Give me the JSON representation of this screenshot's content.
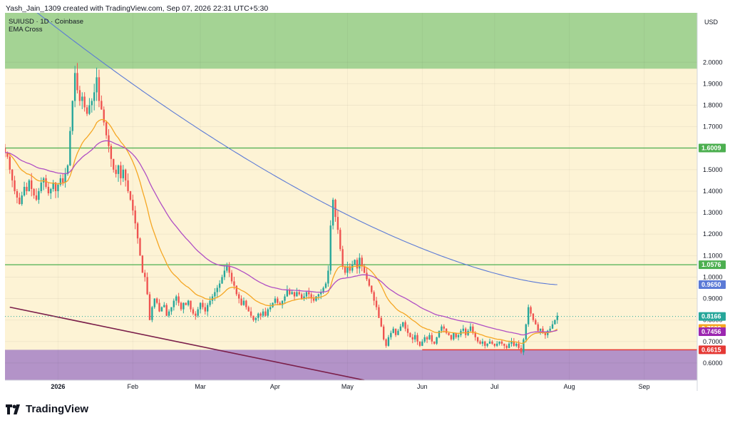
{
  "header": {
    "credit": "Yash_Jain_1309 created with TradingView.com, Sep 07, 2026 22:31 UTC+5:30"
  },
  "legend": {
    "symbol": "SUIUSD · 1D · Coinbase",
    "indicator": "EMA Cross"
  },
  "brand": {
    "name": "TradingView",
    "logo_icon": "tradingview-logo-icon"
  },
  "colors": {
    "background": "#fdf3d5",
    "upper_zone": "#a4d394",
    "lower_zone": "#b393c8",
    "candle_up": "#26a69a",
    "candle_down": "#ef5350",
    "ema_fast": "#f5a623",
    "ema_mid": "#b04fc4",
    "ema_slow": "#5b7ad6",
    "level_line": "#4caf50",
    "support_line": "#e53935",
    "trend_line": "#7b1f4a"
  },
  "chart_data": {
    "type": "candlestick",
    "title": "SUIUSD · 1D · Coinbase",
    "currency_label": "USD",
    "y_ticks": [
      "2.0000",
      "1.9000",
      "1.8000",
      "1.7000",
      "1.6000",
      "1.5000",
      "1.4000",
      "1.3000",
      "1.2000",
      "1.1000",
      "1.0000",
      "0.9000",
      "0.8000",
      "0.7000",
      "0.6000"
    ],
    "x_ticks": [
      {
        "label": "2026",
        "date": "2026-01-01",
        "bold": true
      },
      {
        "label": "Feb",
        "date": "2026-02-01",
        "bold": false
      },
      {
        "label": "Mar",
        "date": "2026-03-01",
        "bold": false
      },
      {
        "label": "Apr",
        "date": "2026-04-01",
        "bold": false
      },
      {
        "label": "May",
        "date": "2026-05-01",
        "bold": false
      },
      {
        "label": "Jun",
        "date": "2026-06-01",
        "bold": false
      },
      {
        "label": "Jul",
        "date": "2026-07-01",
        "bold": false
      },
      {
        "label": "Aug",
        "date": "2026-08-01",
        "bold": false
      },
      {
        "label": "Sep",
        "date": "2026-09-01",
        "bold": false
      }
    ],
    "ylim": [
      0.52,
      2.23
    ],
    "xlim": [
      "2025-12-10",
      "2026-09-23"
    ],
    "zones": [
      {
        "from": 1.97,
        "to": 2.23,
        "color": "#a4d394"
      },
      {
        "from": 0.52,
        "to": 0.6615,
        "color": "#b393c8"
      }
    ],
    "horizontal_levels": [
      {
        "value": 1.6009,
        "label": "1.6009"
      },
      {
        "value": 1.0576,
        "label": "1.0576"
      },
      {
        "value": 0.6615,
        "label": "0.6615"
      }
    ],
    "price_badges": [
      {
        "value": 0.965,
        "label": "0.9650",
        "color": "#5b7ad6"
      },
      {
        "value": 0.8166,
        "label": "0.8166",
        "color": "#26a69a"
      },
      {
        "value": 0.7609,
        "label": "0.7609",
        "color": "#f5a623"
      },
      {
        "value": 0.7456,
        "label": "0.7456",
        "color": "#9c27b0"
      },
      {
        "value": 0.6615,
        "label": "0.6615",
        "color": "#e53935"
      }
    ],
    "trend_line": {
      "start": {
        "date": "2025-12-12",
        "value": 0.86
      },
      "end": {
        "date": "2026-05-08",
        "value": 0.52
      }
    },
    "support_segment": {
      "start": "2026-06-01",
      "end": "2026-09-23",
      "value": 0.6615
    },
    "current_price_date": "2026-09-07",
    "candle_start_date": "2025-12-10",
    "closes": [
      1.58,
      1.56,
      1.5,
      1.45,
      1.4,
      1.37,
      1.34,
      1.38,
      1.42,
      1.4,
      1.45,
      1.41,
      1.38,
      1.36,
      1.4,
      1.44,
      1.46,
      1.42,
      1.39,
      1.41,
      1.44,
      1.4,
      1.43,
      1.46,
      1.44,
      1.48,
      1.52,
      1.68,
      1.82,
      1.95,
      1.87,
      1.82,
      1.84,
      1.79,
      1.76,
      1.8,
      1.82,
      1.86,
      1.93,
      1.82,
      1.78,
      1.72,
      1.66,
      1.61,
      1.55,
      1.5,
      1.48,
      1.52,
      1.46,
      1.5,
      1.45,
      1.4,
      1.36,
      1.31,
      1.25,
      1.18,
      1.1,
      1.02,
      1.0,
      0.92,
      0.8,
      0.86,
      0.9,
      0.88,
      0.84,
      0.86,
      0.87,
      0.82,
      0.84,
      0.86,
      0.89,
      0.91,
      0.88,
      0.85,
      0.88,
      0.87,
      0.89,
      0.85,
      0.83,
      0.82,
      0.85,
      0.88,
      0.86,
      0.84,
      0.87,
      0.89,
      0.91,
      0.93,
      0.95,
      0.97,
      1.0,
      1.03,
      1.05,
      1.02,
      0.98,
      0.96,
      0.92,
      0.9,
      0.87,
      0.89,
      0.86,
      0.84,
      0.82,
      0.8,
      0.81,
      0.83,
      0.82,
      0.84,
      0.82,
      0.85,
      0.86,
      0.88,
      0.9,
      0.88,
      0.87,
      0.89,
      0.91,
      0.94,
      0.92,
      0.93,
      0.91,
      0.93,
      0.92,
      0.9,
      0.91,
      0.93,
      0.92,
      0.9,
      0.89,
      0.91,
      0.92,
      0.93,
      0.95,
      0.97,
      1.03,
      1.24,
      1.36,
      1.28,
      1.22,
      1.13,
      1.05,
      1.02,
      1.05,
      1.03,
      1.06,
      1.08,
      1.04,
      1.09,
      1.05,
      1.02,
      0.99,
      0.96,
      0.93,
      0.89,
      0.86,
      0.81,
      0.77,
      0.71,
      0.68,
      0.72,
      0.74,
      0.76,
      0.73,
      0.75,
      0.77,
      0.79,
      0.76,
      0.74,
      0.72,
      0.71,
      0.73,
      0.7,
      0.68,
      0.7,
      0.72,
      0.71,
      0.73,
      0.7,
      0.69,
      0.72,
      0.75,
      0.77,
      0.76,
      0.74,
      0.73,
      0.71,
      0.74,
      0.72,
      0.73,
      0.75,
      0.76,
      0.73,
      0.75,
      0.77,
      0.74,
      0.72,
      0.7,
      0.69,
      0.7,
      0.68,
      0.69,
      0.7,
      0.69,
      0.68,
      0.69,
      0.7,
      0.69,
      0.68,
      0.67,
      0.69,
      0.7,
      0.68,
      0.69,
      0.67,
      0.65,
      0.71,
      0.78,
      0.86,
      0.83,
      0.8,
      0.78,
      0.75,
      0.76,
      0.74,
      0.73,
      0.75,
      0.76,
      0.78,
      0.8,
      0.82
    ]
  }
}
